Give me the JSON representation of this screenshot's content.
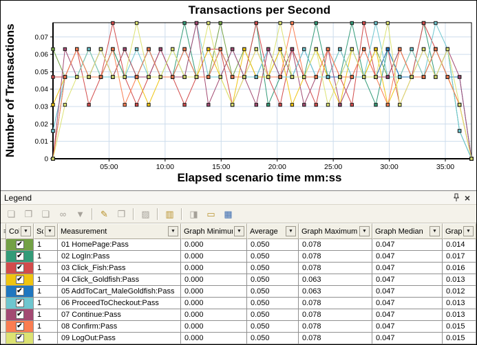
{
  "chart": {
    "title": "Transactions per Second",
    "y_axis_label": "Number of Transactions",
    "x_axis_label": "Elapsed scenario time mm:ss"
  },
  "chart_data": {
    "type": "line",
    "title": "Transactions per Second",
    "xlabel": "Elapsed scenario time mm:ss",
    "ylabel": "Number of Transactions",
    "grid": true,
    "gridline_color": "#ccdcec",
    "ylim": [
      0,
      0.078
    ],
    "y_ticks": [
      0,
      0.01,
      0.02,
      0.03,
      0.04,
      0.05,
      0.06,
      0.07
    ],
    "x_tick_labels": [
      "05:00",
      "10:00",
      "15:00",
      "20:00",
      "25:00",
      "30:00",
      "35:00"
    ],
    "x_tick_seconds": [
      300,
      600,
      900,
      1200,
      1500,
      1800,
      2100
    ],
    "xlim_seconds": [
      0,
      2240
    ],
    "x_interval_seconds": 64,
    "legend_position": "table-below",
    "series": [
      {
        "name": "01 HomePage:Pass",
        "color": "#73a145",
        "values": [
          0.063,
          0.047,
          0.047,
          0.063,
          0.047,
          0.063,
          0.047,
          0.047,
          0.063,
          0.047,
          0.047,
          0.063,
          0.047,
          0.047,
          0.078,
          0.047,
          0.063,
          0.047,
          0.047,
          0.063,
          0.047,
          0.047,
          0.063,
          0.047,
          0.063,
          0.047,
          0.047,
          0.063,
          0.047,
          0.063,
          0.047,
          0.047,
          0.063,
          0.047,
          0.031,
          0.0
        ]
      },
      {
        "name": "02 LogIn:Pass",
        "color": "#339b78",
        "values": [
          0.0,
          0.047,
          0.063,
          0.047,
          0.047,
          0.063,
          0.047,
          0.047,
          0.063,
          0.047,
          0.047,
          0.078,
          0.047,
          0.047,
          0.063,
          0.047,
          0.047,
          0.078,
          0.031,
          0.047,
          0.063,
          0.047,
          0.078,
          0.047,
          0.047,
          0.078,
          0.047,
          0.031,
          0.063,
          0.047,
          0.047,
          0.078,
          0.047,
          0.063,
          0.016,
          0.0
        ]
      },
      {
        "name": "03 Click_Fish:Pass",
        "color": "#d24b4b",
        "values": [
          0.047,
          0.047,
          0.063,
          0.031,
          0.047,
          0.078,
          0.047,
          0.031,
          0.047,
          0.063,
          0.047,
          0.031,
          0.047,
          0.063,
          0.063,
          0.031,
          0.047,
          0.078,
          0.047,
          0.031,
          0.063,
          0.047,
          0.031,
          0.063,
          0.047,
          0.031,
          0.078,
          0.047,
          0.063,
          0.031,
          0.047,
          0.078,
          0.063,
          0.047,
          0.031,
          0.0
        ]
      },
      {
        "name": "04 Click_Goldfish:Pass",
        "color": "#efc410",
        "values": [
          0.031,
          0.047,
          0.047,
          0.063,
          0.047,
          0.047,
          0.063,
          0.047,
          0.031,
          0.047,
          0.063,
          0.047,
          0.047,
          0.063,
          0.047,
          0.031,
          0.063,
          0.047,
          0.047,
          0.063,
          0.031,
          0.047,
          0.063,
          0.047,
          0.031,
          0.063,
          0.047,
          0.063,
          0.031,
          0.047,
          0.063,
          0.047,
          0.063,
          0.047,
          0.031,
          0.0
        ]
      },
      {
        "name": "05 AddToCart_MaleGoldfish:Pass",
        "color": "#1f77c0",
        "values": [
          0.016,
          0.047,
          0.047,
          0.047,
          0.063,
          0.047,
          0.047,
          0.047,
          0.063,
          0.047,
          0.047,
          0.063,
          0.047,
          0.047,
          0.063,
          0.047,
          0.047,
          0.047,
          0.063,
          0.047,
          0.047,
          0.063,
          0.047,
          0.047,
          0.047,
          0.063,
          0.047,
          0.047,
          0.063,
          0.047,
          0.047,
          0.047,
          0.063,
          0.047,
          0.047,
          0.0
        ]
      },
      {
        "name": "06 ProceedToCheckout:Pass",
        "color": "#6ec6cf",
        "values": [
          0.016,
          0.047,
          0.047,
          0.063,
          0.047,
          0.047,
          0.047,
          0.063,
          0.047,
          0.047,
          0.063,
          0.047,
          0.078,
          0.047,
          0.047,
          0.063,
          0.047,
          0.047,
          0.063,
          0.047,
          0.047,
          0.063,
          0.047,
          0.047,
          0.063,
          0.047,
          0.047,
          0.078,
          0.047,
          0.047,
          0.063,
          0.047,
          0.078,
          0.063,
          0.016,
          0.0
        ]
      },
      {
        "name": "07 Continue:Pass",
        "color": "#a34a72",
        "values": [
          0.0,
          0.063,
          0.047,
          0.047,
          0.063,
          0.047,
          0.063,
          0.047,
          0.047,
          0.063,
          0.047,
          0.047,
          0.078,
          0.031,
          0.047,
          0.063,
          0.047,
          0.031,
          0.063,
          0.047,
          0.063,
          0.031,
          0.047,
          0.063,
          0.031,
          0.047,
          0.063,
          0.047,
          0.047,
          0.063,
          0.047,
          0.063,
          0.047,
          0.063,
          0.047,
          0.0
        ]
      },
      {
        "name": "08 Confirm:Pass",
        "color": "#fa7d51",
        "values": [
          0.0,
          0.047,
          0.063,
          0.047,
          0.047,
          0.063,
          0.031,
          0.047,
          0.063,
          0.047,
          0.047,
          0.063,
          0.047,
          0.047,
          0.063,
          0.047,
          0.047,
          0.063,
          0.047,
          0.047,
          0.078,
          0.047,
          0.047,
          0.063,
          0.047,
          0.047,
          0.063,
          0.047,
          0.031,
          0.063,
          0.047,
          0.047,
          0.063,
          0.047,
          0.031,
          0.0
        ]
      },
      {
        "name": "09 LogOut:Pass",
        "color": "#dce272",
        "values": [
          0.0,
          0.031,
          0.047,
          0.047,
          0.063,
          0.047,
          0.047,
          0.078,
          0.047,
          0.047,
          0.063,
          0.047,
          0.047,
          0.078,
          0.047,
          0.031,
          0.047,
          0.063,
          0.047,
          0.078,
          0.047,
          0.047,
          0.063,
          0.031,
          0.047,
          0.063,
          0.047,
          0.047,
          0.078,
          0.031,
          0.047,
          0.063,
          0.047,
          0.063,
          0.031,
          0.0
        ]
      }
    ]
  },
  "legend": {
    "title": "Legend",
    "pin_icon": "pin-icon",
    "close_icon": "close-icon",
    "toolbar": [
      {
        "name": "show-only-selected-button",
        "glyph": "❏",
        "color": "#a5a199",
        "enabled": false
      },
      {
        "name": "hide-selected-button",
        "glyph": "❐",
        "color": "#a5a199",
        "enabled": false
      },
      {
        "name": "show-all-measurements-button",
        "glyph": "❑",
        "color": "#a5a199",
        "enabled": false
      },
      {
        "name": "view-measurement-button",
        "glyph": "∞",
        "color": "#a5a199",
        "enabled": false
      },
      {
        "name": "filter-measurements-button",
        "glyph": "▼",
        "color": "#a5a199",
        "enabled": false
      },
      {
        "type": "sep"
      },
      {
        "name": "configure-measurements-button",
        "glyph": "✎",
        "color": "#b8912a",
        "enabled": true
      },
      {
        "name": "duplicate-measurement-button",
        "glyph": "❒",
        "color": "#a5a199",
        "enabled": false
      },
      {
        "type": "sep"
      },
      {
        "name": "animate-selected-line-button",
        "glyph": "▨",
        "color": "#a5a199",
        "enabled": false
      },
      {
        "type": "sep"
      },
      {
        "name": "select-columns-button",
        "glyph": "▥",
        "color": "#b8912a",
        "enabled": true
      },
      {
        "type": "sep"
      },
      {
        "name": "break-down-measurement-button",
        "glyph": "◨",
        "color": "#a5a199",
        "enabled": false
      },
      {
        "name": "measurement-ruler-button",
        "glyph": "▭",
        "color": "#b8912a",
        "enabled": true
      },
      {
        "name": "legend-grid-button",
        "glyph": "▦",
        "color": "#3a6bb0",
        "enabled": true
      }
    ],
    "table": {
      "columns": [
        "",
        "Col",
        "Sca",
        "Measurement",
        "Graph Minimum",
        "Average",
        "Graph Maximum",
        "Graph Median",
        "Graph Std. De"
      ],
      "rows": [
        {
          "color": "#73a145",
          "checked": true,
          "scale": "1",
          "measurement": "01 HomePage:Pass",
          "graph_minimum": "0.000",
          "average": "0.050",
          "graph_maximum": "0.078",
          "graph_median": "0.047",
          "graph_std_dev": "0.014"
        },
        {
          "color": "#339b78",
          "checked": true,
          "scale": "1",
          "measurement": "02 LogIn:Pass",
          "graph_minimum": "0.000",
          "average": "0.050",
          "graph_maximum": "0.078",
          "graph_median": "0.047",
          "graph_std_dev": "0.017"
        },
        {
          "color": "#d24b4b",
          "checked": true,
          "scale": "1",
          "measurement": "03 Click_Fish:Pass",
          "graph_minimum": "0.000",
          "average": "0.050",
          "graph_maximum": "0.078",
          "graph_median": "0.047",
          "graph_std_dev": "0.016"
        },
        {
          "color": "#efc410",
          "checked": true,
          "scale": "1",
          "measurement": "04 Click_Goldfish:Pass",
          "graph_minimum": "0.000",
          "average": "0.050",
          "graph_maximum": "0.063",
          "graph_median": "0.047",
          "graph_std_dev": "0.013"
        },
        {
          "color": "#1f77c0",
          "checked": true,
          "scale": "1",
          "measurement": "05 AddToCart_MaleGoldfish:Pass",
          "graph_minimum": "0.000",
          "average": "0.050",
          "graph_maximum": "0.063",
          "graph_median": "0.047",
          "graph_std_dev": "0.012"
        },
        {
          "color": "#6ec6cf",
          "checked": true,
          "scale": "1",
          "measurement": "06 ProceedToCheckout:Pass",
          "graph_minimum": "0.000",
          "average": "0.050",
          "graph_maximum": "0.078",
          "graph_median": "0.047",
          "graph_std_dev": "0.013"
        },
        {
          "color": "#a34a72",
          "checked": true,
          "scale": "1",
          "measurement": "07 Continue:Pass",
          "graph_minimum": "0.000",
          "average": "0.050",
          "graph_maximum": "0.078",
          "graph_median": "0.047",
          "graph_std_dev": "0.013"
        },
        {
          "color": "#fa7d51",
          "checked": true,
          "scale": "1",
          "measurement": "08 Confirm:Pass",
          "graph_minimum": "0.000",
          "average": "0.050",
          "graph_maximum": "0.078",
          "graph_median": "0.047",
          "graph_std_dev": "0.015"
        },
        {
          "color": "#dce272",
          "checked": true,
          "scale": "1",
          "measurement": "09 LogOut:Pass",
          "graph_minimum": "0.000",
          "average": "0.050",
          "graph_maximum": "0.078",
          "graph_median": "0.047",
          "graph_std_dev": "0.015"
        }
      ]
    }
  }
}
